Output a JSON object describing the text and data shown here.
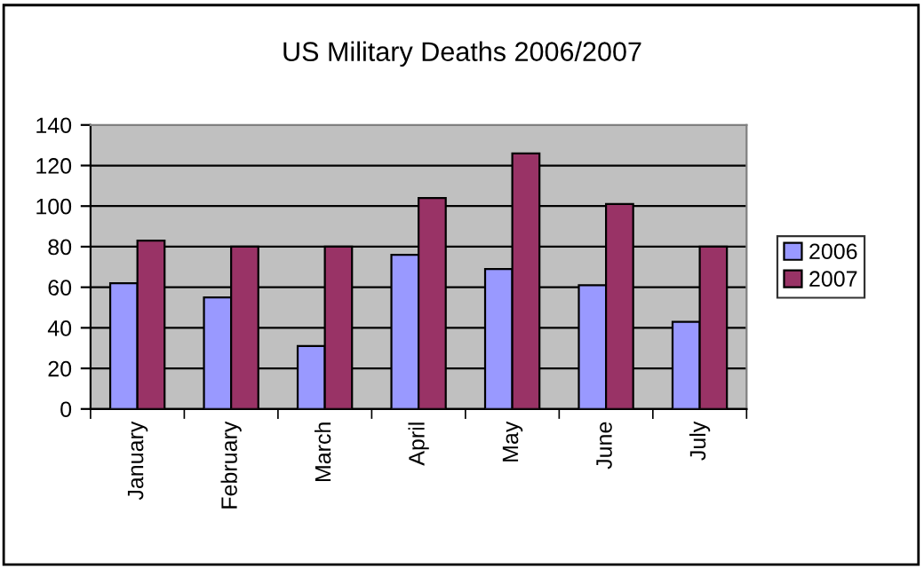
{
  "chart_data": {
    "type": "bar",
    "title": "US Military Deaths 2006/2007",
    "categories": [
      "January",
      "February",
      "March",
      "April",
      "May",
      "June",
      "July"
    ],
    "series": [
      {
        "name": "2006",
        "color": "#9999ff",
        "values": [
          62,
          55,
          31,
          76,
          69,
          61,
          43
        ]
      },
      {
        "name": "2007",
        "color": "#993366",
        "values": [
          83,
          80,
          80,
          104,
          126,
          101,
          80
        ]
      }
    ],
    "ylim": [
      0,
      140
    ],
    "yticks": [
      0,
      20,
      40,
      60,
      80,
      100,
      120,
      140
    ],
    "grid": "y",
    "legend": "right"
  }
}
